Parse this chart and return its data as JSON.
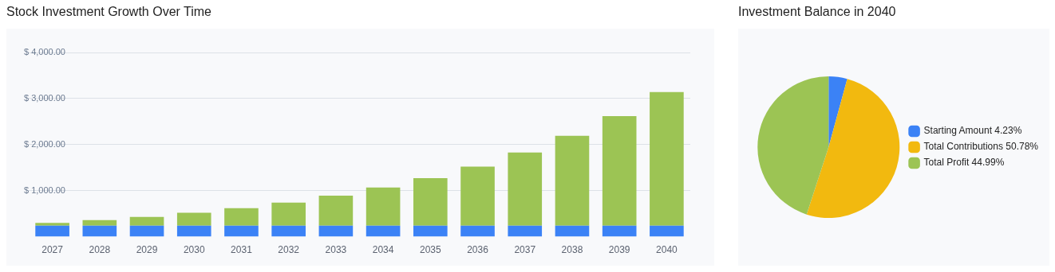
{
  "chart_data": [
    {
      "type": "bar",
      "title": "Stock Investment Growth Over Time",
      "stacked": true,
      "categories": [
        "2027",
        "2028",
        "2029",
        "2030",
        "2031",
        "2032",
        "2033",
        "2034",
        "2035",
        "2036",
        "2037",
        "2038",
        "2039",
        "2040"
      ],
      "series": [
        {
          "color": "#3b82f6",
          "values": [
            240,
            240,
            240,
            240,
            240,
            240,
            240,
            240,
            240,
            240,
            240,
            240,
            240,
            240
          ]
        },
        {
          "color": "#9cc454",
          "values": [
            60,
            120,
            190,
            280,
            380,
            500,
            650,
            830,
            1030,
            1280,
            1590,
            1950,
            2380,
            2900
          ]
        }
      ],
      "ylim": [
        0,
        4000
      ],
      "yticks": [
        {
          "value": 1000,
          "label": "$ 1,000.00"
        },
        {
          "value": 2000,
          "label": "$ 2,000.00"
        },
        {
          "value": 3000,
          "label": "$ 3,000.00"
        },
        {
          "value": 4000,
          "label": "$ 4,000.00"
        }
      ],
      "grid": "y",
      "legend": false
    },
    {
      "type": "pie",
      "title": "Investment Balance in 2040",
      "categories": [
        "Starting Amount",
        "Total Contributions",
        "Total Profit"
      ],
      "values": [
        4.23,
        50.78,
        44.99
      ],
      "value_labels": [
        "4.23%",
        "50.78%",
        "44.99%"
      ],
      "colors": [
        "#3b82f6",
        "#f2b90f",
        "#9cc454"
      ],
      "legend": "right"
    }
  ]
}
